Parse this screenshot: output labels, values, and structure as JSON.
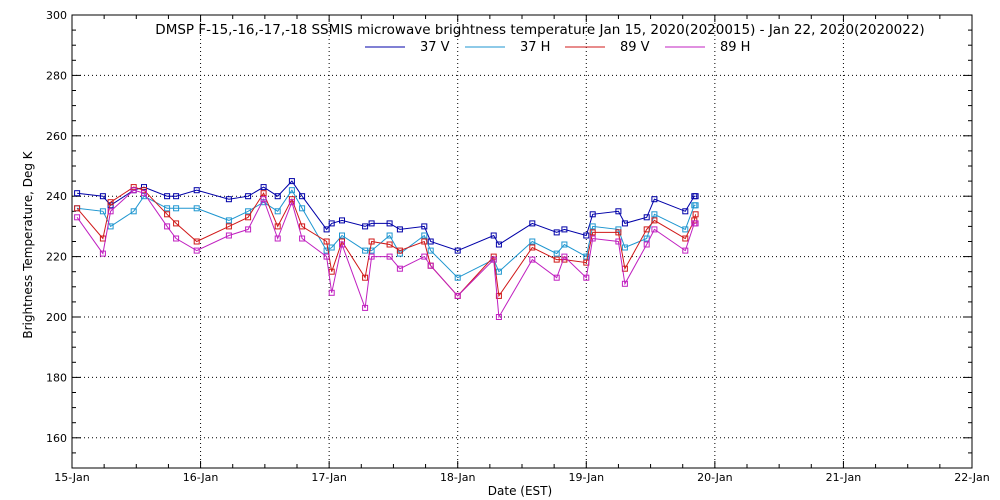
{
  "chart_data": {
    "type": "line",
    "title": "DMSP F-15,-16,-17,-18 SSMIS microwave brightness temperature Jan 15, 2020(2020015) - Jan 22, 2020(2020022)",
    "xlabel": "Date (EST)",
    "ylabel": "Brightness Temperature, Deg K",
    "xlim": [
      0,
      7
    ],
    "ylim": [
      150,
      300
    ],
    "x_ticks": [
      0,
      1,
      2,
      3,
      4,
      5,
      6,
      7
    ],
    "x_tick_labels": [
      "15-Jan",
      "16-Jan",
      "17-Jan",
      "18-Jan",
      "19-Jan",
      "20-Jan",
      "21-Jan",
      "22-Jan"
    ],
    "y_ticks": [
      160,
      180,
      200,
      220,
      240,
      260,
      280,
      300
    ],
    "grid": true,
    "legend_position": "top-center",
    "x": [
      0.04,
      0.24,
      0.3,
      0.48,
      0.56,
      0.74,
      0.81,
      0.97,
      1.22,
      1.37,
      1.49,
      1.6,
      1.71,
      1.79,
      1.98,
      2.02,
      2.1,
      2.28,
      2.33,
      2.47,
      2.55,
      2.74,
      2.79,
      3.0,
      3.28,
      3.32,
      3.58,
      3.77,
      3.83,
      4.0,
      4.05,
      4.25,
      4.3,
      4.47,
      4.53,
      4.77,
      4.84,
      4.85
    ],
    "series": [
      {
        "name": "37 V",
        "color": "#0000a8",
        "values": [
          241,
          240,
          237,
          242,
          243,
          240,
          240,
          242,
          239,
          240,
          243,
          240,
          245,
          240,
          229,
          231,
          232,
          230,
          231,
          231,
          229,
          230,
          225,
          222,
          227,
          224,
          231,
          228,
          229,
          227,
          234,
          235,
          231,
          233,
          239,
          235,
          240,
          240
        ]
      },
      {
        "name": "37 H",
        "color": "#1e96d0",
        "values": [
          236,
          235,
          230,
          235,
          240,
          236,
          236,
          236,
          232,
          235,
          238,
          235,
          242,
          236,
          222,
          223,
          227,
          222,
          222,
          227,
          221,
          227,
          222,
          213,
          219,
          215,
          225,
          221,
          224,
          220,
          230,
          229,
          223,
          226,
          234,
          229,
          237,
          237
        ]
      },
      {
        "name": "89 V",
        "color": "#d01818",
        "values": [
          236,
          226,
          238,
          243,
          242,
          234,
          231,
          225,
          230,
          233,
          241,
          230,
          239,
          230,
          225,
          215,
          225,
          213,
          225,
          224,
          222,
          225,
          217,
          207,
          220,
          207,
          223,
          219,
          219,
          218,
          228,
          228,
          216,
          229,
          232,
          226,
          232,
          234
        ]
      },
      {
        "name": "89 H",
        "color": "#c020c0",
        "values": [
          233,
          221,
          235,
          242,
          241,
          230,
          226,
          222,
          227,
          229,
          239,
          226,
          238,
          226,
          220,
          208,
          224,
          203,
          220,
          220,
          216,
          220,
          217,
          207,
          219,
          200,
          219,
          213,
          220,
          213,
          226,
          225,
          211,
          224,
          229,
          222,
          231,
          231
        ]
      }
    ]
  }
}
